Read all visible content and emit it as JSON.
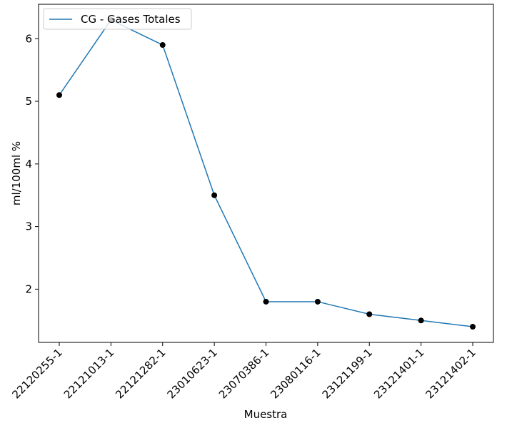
{
  "chart_data": {
    "type": "line",
    "title": "",
    "xlabel": "Muestra",
    "ylabel": "ml/100ml %",
    "categories": [
      "22120255-1",
      "22121013-1",
      "22121282-1",
      "23010623-1",
      "23070386-1",
      "23080116-1",
      "23121199-1",
      "23121401-1",
      "23121402-1"
    ],
    "series": [
      {
        "name": "CG - Gases Totales",
        "values": [
          5.1,
          6.3,
          5.9,
          3.5,
          1.8,
          1.8,
          1.6,
          1.5,
          1.4
        ],
        "color": "#1f77b4",
        "marker_color": "#000000"
      }
    ],
    "yticks": [
      2,
      3,
      4,
      5,
      6
    ],
    "ylim": [
      1.15,
      6.55
    ],
    "legend_position": "top-left",
    "grid": false
  }
}
